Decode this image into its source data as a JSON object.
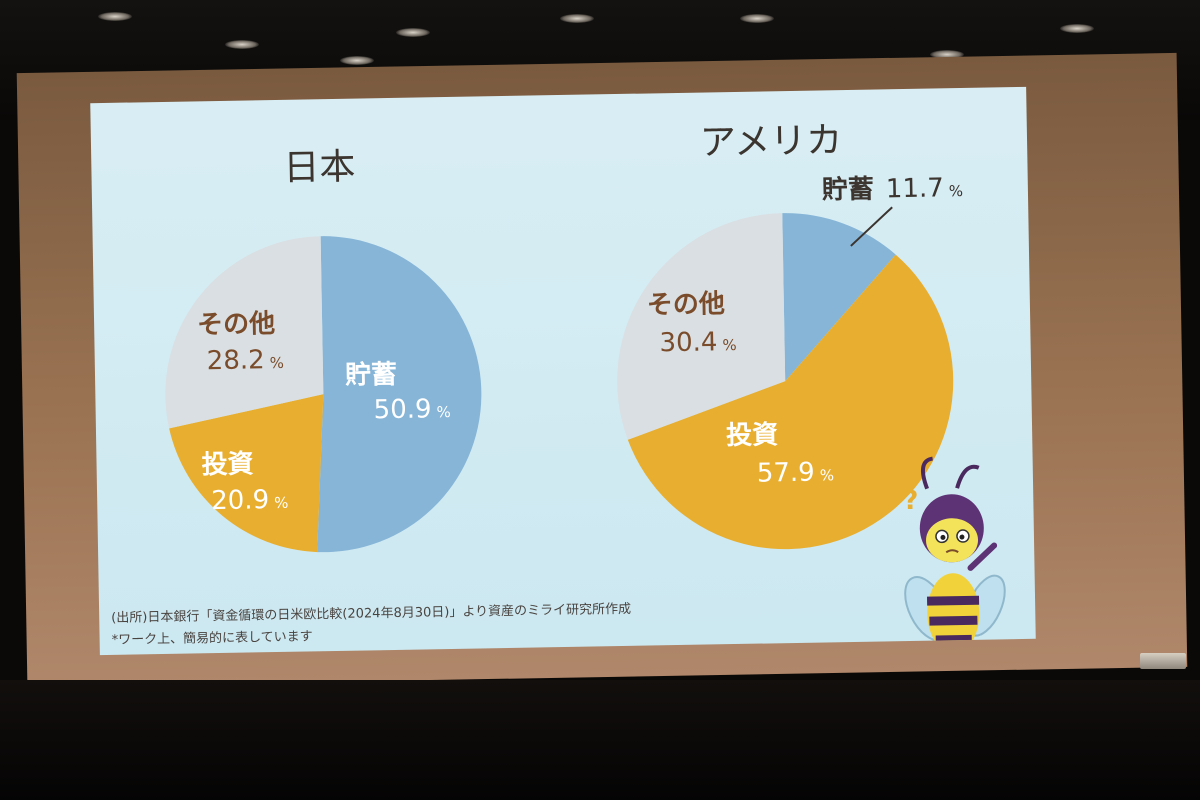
{
  "colors": {
    "savings": "#86b5d7",
    "investment": "#e8ae2f",
    "other": "#d9dfe2",
    "label_brown": "#7a4c2b",
    "label_white": "#ffffff",
    "slide_bg": "#d2ebf3"
  },
  "chart_data": [
    {
      "type": "pie",
      "title": "日本",
      "slices": [
        {
          "label": "貯蓄",
          "value": 50.9,
          "value_text": "50.9",
          "unit": "%",
          "color": "#86b5d7"
        },
        {
          "label": "投資",
          "value": 20.9,
          "value_text": "20.9",
          "unit": "%",
          "color": "#e8ae2f"
        },
        {
          "label": "その他",
          "value": 28.2,
          "value_text": "28.2",
          "unit": "%",
          "color": "#d9dfe2"
        }
      ]
    },
    {
      "type": "pie",
      "title": "アメリカ",
      "slices": [
        {
          "label": "貯蓄",
          "value": 11.7,
          "value_text": "11.7",
          "unit": "%",
          "color": "#86b5d7"
        },
        {
          "label": "投資",
          "value": 57.9,
          "value_text": "57.9",
          "unit": "%",
          "color": "#e8ae2f"
        },
        {
          "label": "その他",
          "value": 30.4,
          "value_text": "30.4",
          "unit": "%",
          "color": "#d9dfe2"
        }
      ]
    }
  ],
  "source_note": "(出所)日本銀行「資金循環の日米欧比較(2024年8月30日)」より資産のミライ研究所作成",
  "work_note": "*ワーク上、簡易的に表しています",
  "mascot_mark": "?",
  "mascot_icon": "bee-mascot-icon"
}
